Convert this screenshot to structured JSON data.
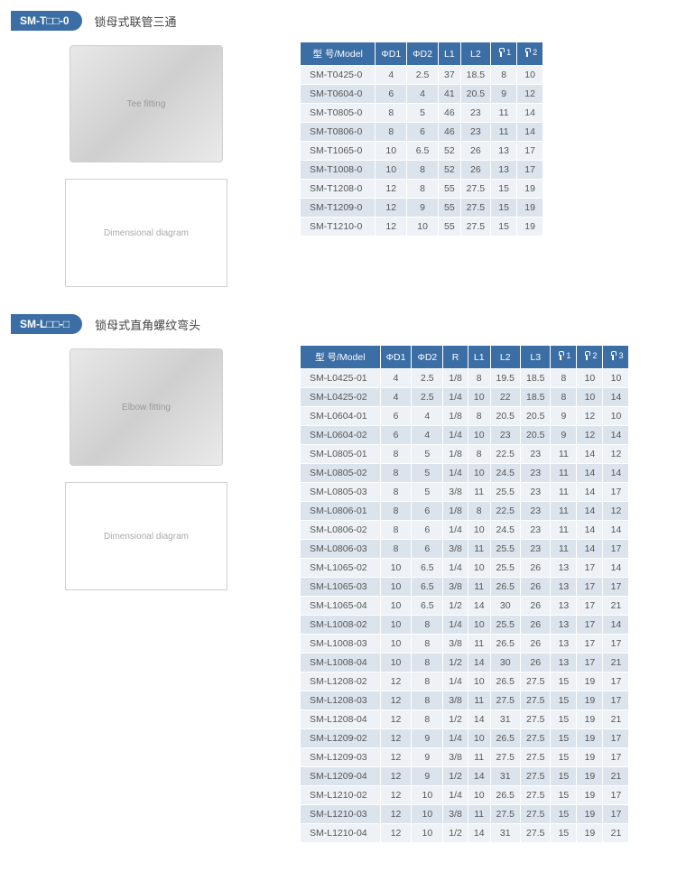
{
  "section1": {
    "badge": "SM-T□□-0",
    "title": "锁母式联管三通",
    "image_label": "Tee fitting",
    "diagram_label": "Dimensional diagram",
    "columns": [
      "型 号/Model",
      "ΦD1",
      "ΦD2",
      "L1",
      "L2",
      "⌀1",
      "⌀2"
    ],
    "rows": [
      [
        "SM-T0425-0",
        "4",
        "2.5",
        "37",
        "18.5",
        "8",
        "10"
      ],
      [
        "SM-T0604-0",
        "6",
        "4",
        "41",
        "20.5",
        "9",
        "12"
      ],
      [
        "SM-T0805-0",
        "8",
        "5",
        "46",
        "23",
        "11",
        "14"
      ],
      [
        "SM-T0806-0",
        "8",
        "6",
        "46",
        "23",
        "11",
        "14"
      ],
      [
        "SM-T1065-0",
        "10",
        "6.5",
        "52",
        "26",
        "13",
        "17"
      ],
      [
        "SM-T1008-0",
        "10",
        "8",
        "52",
        "26",
        "13",
        "17"
      ],
      [
        "SM-T1208-0",
        "12",
        "8",
        "55",
        "27.5",
        "15",
        "19"
      ],
      [
        "SM-T1209-0",
        "12",
        "9",
        "55",
        "27.5",
        "15",
        "19"
      ],
      [
        "SM-T1210-0",
        "12",
        "10",
        "55",
        "27.5",
        "15",
        "19"
      ]
    ]
  },
  "section2": {
    "badge": "SM-L□□-□",
    "title": "锁母式直角螺纹弯头",
    "image_label": "Elbow fitting",
    "diagram_label": "Dimensional diagram",
    "columns": [
      "型 号/Model",
      "ΦD1",
      "ΦD2",
      "R",
      "L1",
      "L2",
      "L3",
      "⌀1",
      "⌀2",
      "⌀3"
    ],
    "rows": [
      [
        "SM-L0425-01",
        "4",
        "2.5",
        "1/8",
        "8",
        "19.5",
        "18.5",
        "8",
        "10",
        "10"
      ],
      [
        "SM-L0425-02",
        "4",
        "2.5",
        "1/4",
        "10",
        "22",
        "18.5",
        "8",
        "10",
        "14"
      ],
      [
        "SM-L0604-01",
        "6",
        "4",
        "1/8",
        "8",
        "20.5",
        "20.5",
        "9",
        "12",
        "10"
      ],
      [
        "SM-L0604-02",
        "6",
        "4",
        "1/4",
        "10",
        "23",
        "20.5",
        "9",
        "12",
        "14"
      ],
      [
        "SM-L0805-01",
        "8",
        "5",
        "1/8",
        "8",
        "22.5",
        "23",
        "11",
        "14",
        "12"
      ],
      [
        "SM-L0805-02",
        "8",
        "5",
        "1/4",
        "10",
        "24.5",
        "23",
        "11",
        "14",
        "14"
      ],
      [
        "SM-L0805-03",
        "8",
        "5",
        "3/8",
        "11",
        "25.5",
        "23",
        "11",
        "14",
        "17"
      ],
      [
        "SM-L0806-01",
        "8",
        "6",
        "1/8",
        "8",
        "22.5",
        "23",
        "11",
        "14",
        "12"
      ],
      [
        "SM-L0806-02",
        "8",
        "6",
        "1/4",
        "10",
        "24.5",
        "23",
        "11",
        "14",
        "14"
      ],
      [
        "SM-L0806-03",
        "8",
        "6",
        "3/8",
        "11",
        "25.5",
        "23",
        "11",
        "14",
        "17"
      ],
      [
        "SM-L1065-02",
        "10",
        "6.5",
        "1/4",
        "10",
        "25.5",
        "26",
        "13",
        "17",
        "14"
      ],
      [
        "SM-L1065-03",
        "10",
        "6.5",
        "3/8",
        "11",
        "26.5",
        "26",
        "13",
        "17",
        "17"
      ],
      [
        "SM-L1065-04",
        "10",
        "6.5",
        "1/2",
        "14",
        "30",
        "26",
        "13",
        "17",
        "21"
      ],
      [
        "SM-L1008-02",
        "10",
        "8",
        "1/4",
        "10",
        "25.5",
        "26",
        "13",
        "17",
        "14"
      ],
      [
        "SM-L1008-03",
        "10",
        "8",
        "3/8",
        "11",
        "26.5",
        "26",
        "13",
        "17",
        "17"
      ],
      [
        "SM-L1008-04",
        "10",
        "8",
        "1/2",
        "14",
        "30",
        "26",
        "13",
        "17",
        "21"
      ],
      [
        "SM-L1208-02",
        "12",
        "8",
        "1/4",
        "10",
        "26.5",
        "27.5",
        "15",
        "19",
        "17"
      ],
      [
        "SM-L1208-03",
        "12",
        "8",
        "3/8",
        "11",
        "27.5",
        "27.5",
        "15",
        "19",
        "17"
      ],
      [
        "SM-L1208-04",
        "12",
        "8",
        "1/2",
        "14",
        "31",
        "27.5",
        "15",
        "19",
        "21"
      ],
      [
        "SM-L1209-02",
        "12",
        "9",
        "1/4",
        "10",
        "26.5",
        "27.5",
        "15",
        "19",
        "17"
      ],
      [
        "SM-L1209-03",
        "12",
        "9",
        "3/8",
        "11",
        "27.5",
        "27.5",
        "15",
        "19",
        "17"
      ],
      [
        "SM-L1209-04",
        "12",
        "9",
        "1/2",
        "14",
        "31",
        "27.5",
        "15",
        "19",
        "21"
      ],
      [
        "SM-L1210-02",
        "12",
        "10",
        "1/4",
        "10",
        "26.5",
        "27.5",
        "15",
        "19",
        "17"
      ],
      [
        "SM-L1210-03",
        "12",
        "10",
        "3/8",
        "11",
        "27.5",
        "27.5",
        "15",
        "19",
        "17"
      ],
      [
        "SM-L1210-04",
        "12",
        "10",
        "1/2",
        "14",
        "31",
        "27.5",
        "15",
        "19",
        "21"
      ]
    ]
  },
  "styling": {
    "header_bg": "#3b6ea5",
    "row_odd_bg": "#eef2f6",
    "row_even_bg": "#dbe3ec",
    "page_bg": "#ffffff",
    "text_color": "#555555",
    "font_size_body": 11,
    "font_size_table": 10.5
  }
}
